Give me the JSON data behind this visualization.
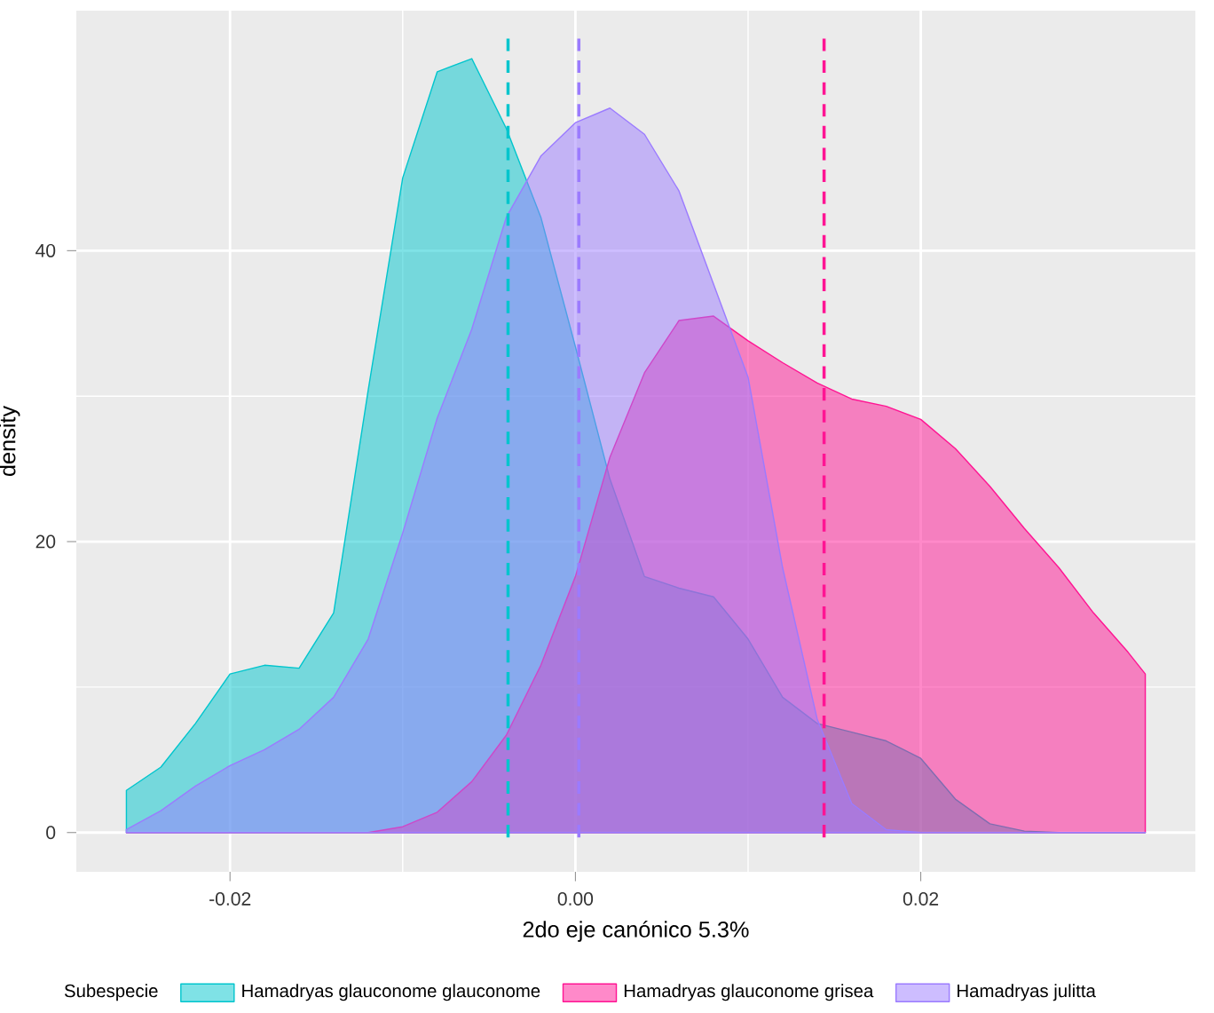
{
  "chart_data": {
    "type": "area",
    "xlabel": "2do eje canónico 5.3%",
    "ylabel": "density",
    "legend_title": "Subespecie",
    "x": [
      -0.026,
      -0.024,
      -0.022,
      -0.02,
      -0.018,
      -0.016,
      -0.014,
      -0.012,
      -0.01,
      -0.008,
      -0.006,
      -0.004,
      -0.002,
      0,
      0.002,
      0.004,
      0.006,
      0.008,
      0.01,
      0.012,
      0.014,
      0.016,
      0.018,
      0.02,
      0.022,
      0.024,
      0.026,
      0.028,
      0.03,
      0.032,
      0.033
    ],
    "series": [
      {
        "name": "Hamadryas glauconome glauconome",
        "color": "#00C5CD",
        "values": [
          2.9,
          4.5,
          7.5,
          10.9,
          11.5,
          11.3,
          15.1,
          30.4,
          45.0,
          52.3,
          53.2,
          48.4,
          42.3,
          33.4,
          24.3,
          17.6,
          16.8,
          16.2,
          13.3,
          9.3,
          7.5,
          6.9,
          6.3,
          5.1,
          2.3,
          0.6,
          0.1,
          0,
          0,
          0,
          0
        ]
      },
      {
        "name": "Hamadryas glauconome grisea",
        "color": "#FF1493",
        "values": [
          0,
          0,
          0,
          0,
          0,
          0,
          0,
          0,
          0.4,
          1.4,
          3.5,
          6.7,
          11.5,
          17.6,
          25.8,
          31.6,
          35.2,
          35.5,
          33.8,
          32.3,
          30.9,
          29.8,
          29.3,
          28.4,
          26.4,
          23.8,
          20.9,
          18.2,
          15.1,
          12.4,
          10.9
        ]
      },
      {
        "name": "Hamadryas julitta",
        "color": "#9B7BFF",
        "values": [
          0.2,
          1.5,
          3.2,
          4.6,
          5.7,
          7.1,
          9.3,
          13.3,
          20.6,
          28.5,
          34.6,
          42.3,
          46.5,
          48.8,
          49.8,
          48.0,
          44.1,
          37.7,
          31.3,
          18.2,
          7.8,
          2.0,
          0.2,
          0,
          0,
          0,
          0,
          0,
          0,
          0,
          0
        ]
      }
    ],
    "ref_lines": [
      {
        "axis": "x",
        "value": -0.0039,
        "color": "#00C5CD",
        "line_style": "dashed"
      },
      {
        "axis": "x",
        "value": 0.0002,
        "color": "#9B7BFF",
        "line_style": "dashed"
      },
      {
        "axis": "x",
        "value": 0.0144,
        "color": "#FF1493",
        "line_style": "dashed"
      }
    ],
    "xlim": [
      -0.0289,
      0.0359
    ],
    "ylim": [
      -2.7,
      56.5
    ],
    "xticks": [
      {
        "value": -0.02,
        "label": "-0.02"
      },
      {
        "value": 0,
        "label": "0.00"
      },
      {
        "value": 0.02,
        "label": "0.02"
      }
    ],
    "yticks": [
      0,
      20,
      40
    ],
    "grid": true,
    "legend": "bottom"
  }
}
